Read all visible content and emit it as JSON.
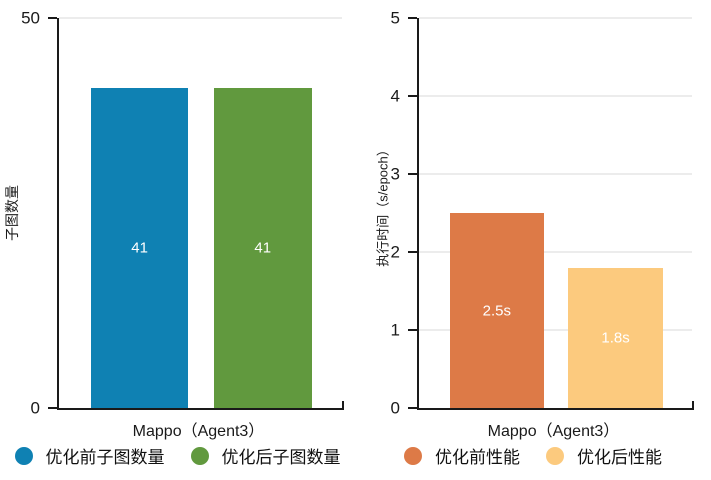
{
  "chart_data": [
    {
      "type": "bar",
      "categories": [
        "Mappo（Agent3）"
      ],
      "series": [
        {
          "name": "优化前子图数量",
          "values": [
            41
          ],
          "bar_label": "41",
          "color": "#0f81b3"
        },
        {
          "name": "优化后子图数量",
          "values": [
            41
          ],
          "bar_label": "41",
          "color": "#61993e"
        }
      ],
      "xlabel": "Mappo（Agent3）",
      "ylabel": "子图数量",
      "ylim": [
        0,
        50
      ],
      "yticks": [
        0,
        50
      ],
      "grid": true,
      "legend_position": "bottom",
      "bar_label_color": "#ffffff"
    },
    {
      "type": "bar",
      "categories": [
        "Mappo（Agent3）"
      ],
      "series": [
        {
          "name": "优化前性能",
          "values": [
            2.5
          ],
          "bar_label": "2.5s",
          "color": "#dd7a47"
        },
        {
          "name": "优化后性能",
          "values": [
            1.8
          ],
          "bar_label": "1.8s",
          "color": "#fcca7e"
        }
      ],
      "xlabel": "Mappo（Agent3）",
      "ylabel": "执行时间（s/epoch）",
      "ylim": [
        0,
        5
      ],
      "yticks": [
        0,
        1,
        2,
        3,
        4,
        5
      ],
      "grid": true,
      "legend_position": "bottom",
      "bar_label_color": "#ffffff"
    }
  ],
  "colors": {
    "background": "#ffffff",
    "axis": "#1a1a1a",
    "gridline": "#d9d9d9"
  }
}
